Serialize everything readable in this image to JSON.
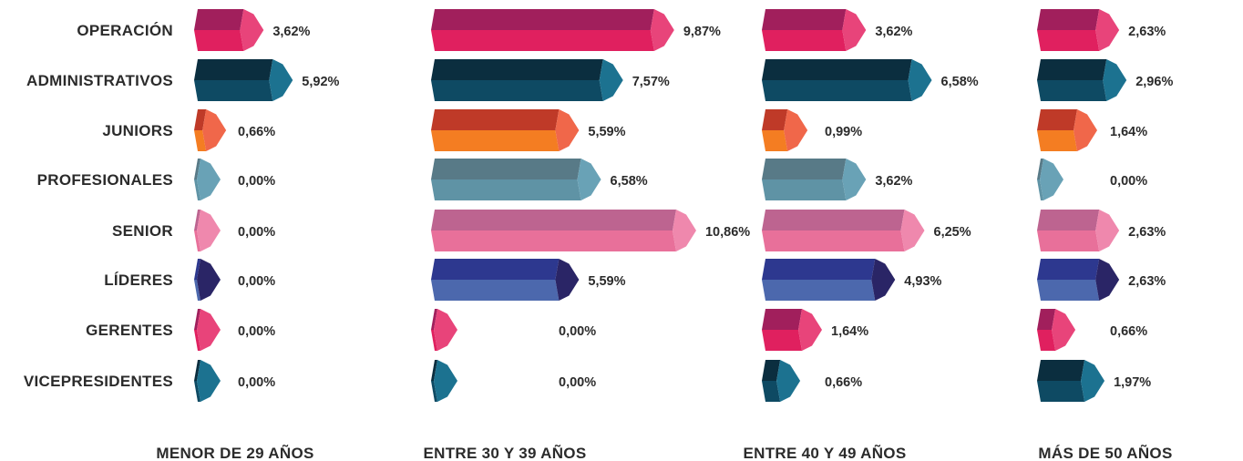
{
  "chart_data": {
    "type": "bar",
    "categories": [
      "OPERACIÓN",
      "ADMINISTRATIVOS",
      "JUNIORS",
      "PROFESIONALES",
      "SENIOR",
      "LÍDERES",
      "GERENTES",
      "VICEPRESIDENTES"
    ],
    "series": [
      {
        "name": "MENOR DE 29 AÑOS",
        "values": [
          3.62,
          5.92,
          0.66,
          0.0,
          0.0,
          0.0,
          0.0,
          0.0
        ],
        "labels": [
          "3,62%",
          "5,92%",
          "0,66%",
          "0,00%",
          "0,00%",
          "0,00%",
          "0,00%",
          "0,00%"
        ]
      },
      {
        "name": "ENTRE 30 Y 39 AÑOS",
        "values": [
          9.87,
          7.57,
          5.59,
          6.58,
          10.86,
          5.59,
          0.0,
          0.0
        ],
        "labels": [
          "9,87%",
          "7,57%",
          "5,59%",
          "6,58%",
          "10,86%",
          "5,59%",
          "0,00%",
          "0,00%"
        ]
      },
      {
        "name": "ENTRE 40 Y 49 AÑOS",
        "values": [
          3.62,
          6.58,
          0.99,
          3.62,
          6.25,
          4.93,
          1.64,
          0.66
        ],
        "labels": [
          "3,62%",
          "6,58%",
          "0,99%",
          "3,62%",
          "6,25%",
          "4,93%",
          "1,64%",
          "0,66%"
        ]
      },
      {
        "name": "MÁS DE 50 AÑOS",
        "values": [
          2.63,
          2.96,
          1.64,
          0.0,
          2.63,
          2.63,
          0.66,
          1.97
        ],
        "labels": [
          "2,63%",
          "2,96%",
          "1,64%",
          "0,00%",
          "2,63%",
          "2,63%",
          "0,66%",
          "1,97%"
        ]
      }
    ],
    "colors": {
      "OPERACIÓN": {
        "front": "#e0205f",
        "top": "#a11f5c",
        "side": "#e8447a"
      },
      "ADMINISTRATIVOS": {
        "front": "#0e4a63",
        "top": "#0b2e3f",
        "side": "#1c7290"
      },
      "JUNIORS": {
        "front": "#f47d22",
        "top": "#bf3a28",
        "side": "#f0674a"
      },
      "PROFESIONALES": {
        "front": "#5f93a5",
        "top": "#587a87",
        "side": "#69a2b6"
      },
      "SENIOR": {
        "front": "#e8709a",
        "top": "#bd6490",
        "side": "#ef88ad"
      },
      "LÍDERES": {
        "front": "#4c68ad",
        "top": "#2d388f",
        "side": "#2a2566"
      },
      "GERENTES": {
        "front": "#e0205f",
        "top": "#a11f5c",
        "side": "#e8447a"
      },
      "VICEPRESIDENTES": {
        "front": "#0e4a63",
        "top": "#0b2e3f",
        "side": "#1c7290"
      }
    },
    "title": "",
    "xlabel": "",
    "ylabel": "",
    "grid": false,
    "legend": "none"
  }
}
